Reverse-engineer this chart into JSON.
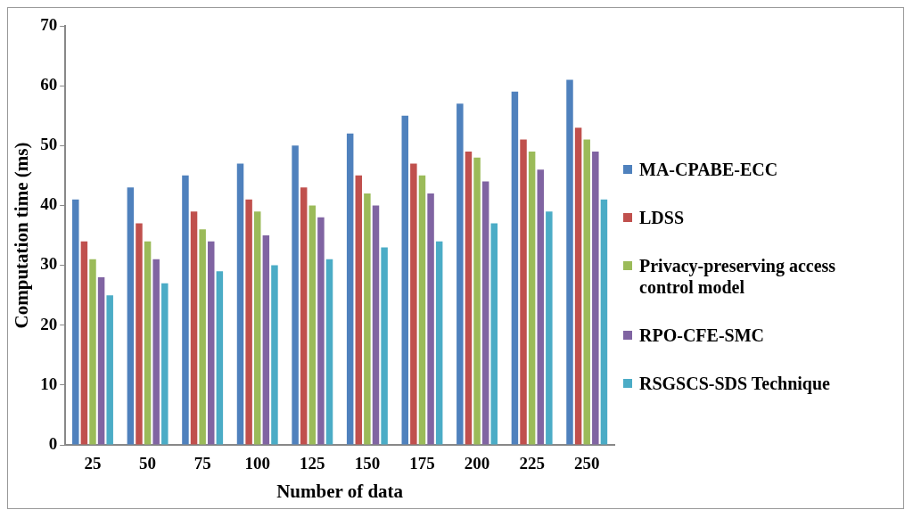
{
  "chart_data": {
    "type": "bar",
    "xlabel": "Number of data",
    "ylabel": "Computation time (ms)",
    "categories": [
      "25",
      "50",
      "75",
      "100",
      "125",
      "150",
      "175",
      "200",
      "225",
      "250"
    ],
    "series": [
      {
        "name": "MA-CPABE-ECC",
        "color": "#4f81bd",
        "values": [
          41,
          43,
          45,
          47,
          50,
          52,
          55,
          57,
          59,
          61
        ]
      },
      {
        "name": "LDSS",
        "color": "#c0504d",
        "values": [
          34,
          37,
          39,
          41,
          43,
          45,
          47,
          49,
          51,
          53
        ]
      },
      {
        "name": "Privacy-preserving access control model",
        "color": "#9bbb59",
        "values": [
          31,
          34,
          36,
          39,
          40,
          42,
          45,
          48,
          49,
          51
        ]
      },
      {
        "name": "RPO-CFE-SMC",
        "color": "#8064a2",
        "values": [
          28,
          31,
          34,
          35,
          38,
          40,
          42,
          44,
          46,
          49
        ]
      },
      {
        "name": "RSGSCS-SDS Technique",
        "color": "#4bacc6",
        "values": [
          25,
          27,
          29,
          30,
          31,
          33,
          34,
          37,
          39,
          41
        ]
      }
    ],
    "ylim": [
      0,
      70
    ],
    "yticks": [
      0,
      10,
      20,
      30,
      40,
      50,
      60,
      70
    ],
    "grid": false,
    "legend": "right"
  }
}
